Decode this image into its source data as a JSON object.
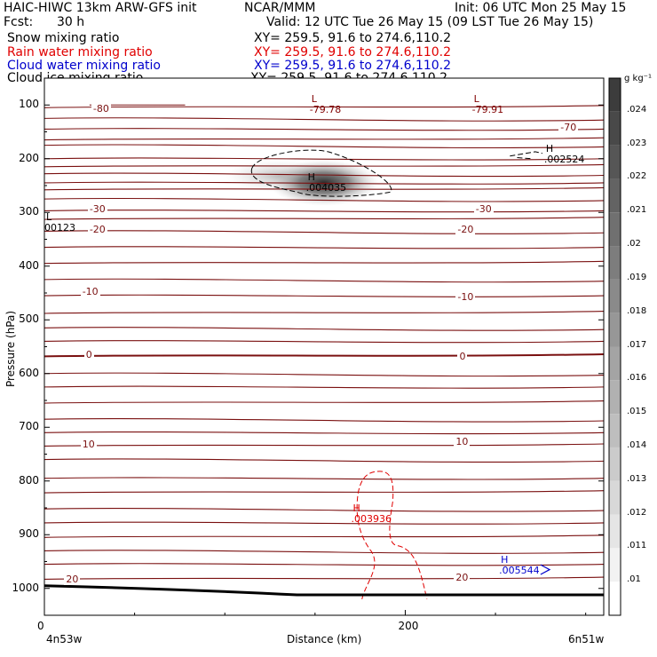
{
  "header": {
    "title_left": "HAIC-HIWC 13km ARW-GFS init",
    "center": "NCAR/MMM",
    "init": "Init: 06 UTC Mon 25 May 15",
    "fcst_label": "Fcst:",
    "fcst_value": "30 h",
    "valid": "Valid: 12 UTC Tue 26 May 15 (09 LST Tue 26 May 15)"
  },
  "fields": [
    {
      "name": "Snow mixing ratio",
      "xy": "XY= 259.5, 91.6 to 274.6,110.2",
      "color": "#000000"
    },
    {
      "name": "Rain water mixing ratio",
      "xy": "XY= 259.5, 91.6 to 274.6,110.2",
      "color": "#e00000"
    },
    {
      "name": "Cloud water mixing ratio",
      "xy": "XY= 259.5, 91.6 to 274.6,110.2",
      "color": "#0000cc"
    },
    {
      "name": "Cloud ice mixing ratio",
      "xy": "XY= 259.5, 91.6 to 274.6,110.2",
      "color": "#000000"
    }
  ],
  "axes": {
    "ylabel": "Pressure (hPa)",
    "xlabel": "Distance (km)",
    "left_point": "4n53w",
    "right_point": "6n51w"
  },
  "colorbar": {
    "unit": "g kg⁻¹",
    "levels": [
      ".024",
      ".023",
      ".022",
      ".021",
      ".02",
      ".019",
      ".018",
      ".017",
      ".016",
      ".015",
      ".014",
      ".013",
      ".012",
      ".011",
      ".01"
    ]
  },
  "chart_data": {
    "type": "contour",
    "ylim": [
      1050,
      50
    ],
    "xlim": [
      0,
      310
    ],
    "y_ticks": [
      100,
      200,
      300,
      400,
      500,
      600,
      700,
      800,
      900,
      1000
    ],
    "x_ticks": [
      0,
      200
    ],
    "temperature_contour_labels": [
      {
        "text": "-80",
        "x": 28,
        "p": 110
      },
      {
        "text": "-70",
        "x": 287,
        "p": 145
      },
      {
        "text": "-30",
        "x": 26,
        "p": 297
      },
      {
        "text": "-30",
        "x": 240,
        "p": 297
      },
      {
        "text": "-20",
        "x": 26,
        "p": 335
      },
      {
        "text": "-20",
        "x": 230,
        "p": 335
      },
      {
        "text": "-10",
        "x": 22,
        "p": 450
      },
      {
        "text": "-10",
        "x": 230,
        "p": 460
      },
      {
        "text": "0",
        "x": 24,
        "p": 568
      },
      {
        "text": "0",
        "x": 231,
        "p": 570
      },
      {
        "text": "10",
        "x": 22,
        "p": 735
      },
      {
        "text": "10",
        "x": 229,
        "p": 730
      },
      {
        "text": "20",
        "x": 13,
        "p": 985
      },
      {
        "text": "20",
        "x": 229,
        "p": 983
      }
    ],
    "extrema": [
      {
        "kind": "L",
        "value": "-79.78",
        "x": 147,
        "p": 108,
        "color": "#800000"
      },
      {
        "kind": "L",
        "value": "-79.91",
        "x": 237,
        "p": 108,
        "color": "#800000"
      },
      {
        "kind": "H",
        "value": ".002524",
        "x": 277,
        "p": 200,
        "color": "#000000"
      },
      {
        "kind": "H",
        "value": ".004035",
        "x": 145,
        "p": 253,
        "color": "#000000"
      },
      {
        "kind": "L",
        "value": "00123",
        "x": 0,
        "p": 327,
        "color": "#000000"
      },
      {
        "kind": "H",
        "value": ".003936",
        "x": 170,
        "p": 870,
        "color": "#e00000"
      },
      {
        "kind": "H",
        "value": ".005544",
        "x": 252,
        "p": 965,
        "color": "#0000cc"
      }
    ]
  }
}
